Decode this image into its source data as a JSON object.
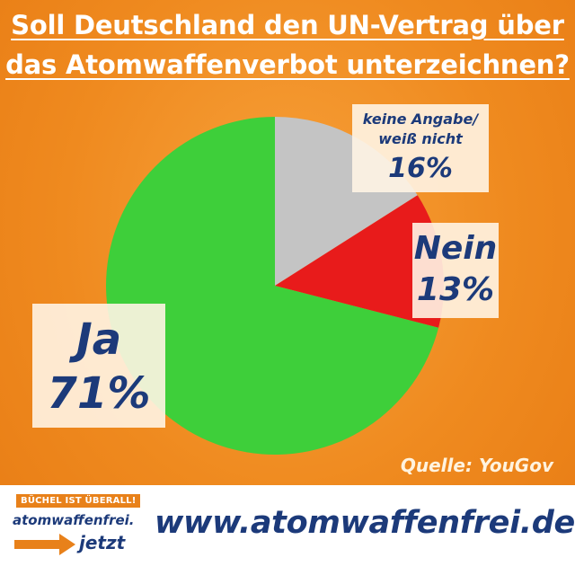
{
  "title": {
    "line1": "Soll Deutschland den UN-Vertrag über",
    "line2": "das Atomwaffenverbot unterzeichnen?"
  },
  "chart_data": {
    "type": "pie",
    "slices": [
      {
        "label": "keine Angabe/ weiß nicht",
        "value": 16,
        "color": "#c4c4c4"
      },
      {
        "label": "Nein",
        "value": 13,
        "color": "#e81b1b"
      },
      {
        "label": "Ja",
        "value": 71,
        "color": "#3ecf3a"
      }
    ],
    "value_labels": {
      "keine_angabe_line1": "keine Angabe/",
      "keine_angabe_line2": "weiß nicht",
      "keine_angabe_pct": "16%",
      "nein": "Nein",
      "nein_pct": "13%",
      "ja": "Ja",
      "ja_pct": "71%"
    },
    "start_angle": "top",
    "direction": "clockwise"
  },
  "source": "Quelle: YouGov",
  "footer": {
    "badge": "BÜCHEL IST ÜBERALL!",
    "logo_line1": "atomwaffenfrei.",
    "logo_line2": "jetzt",
    "url": "www.atomwaffenfrei.de",
    "arrow_color": "#e8811a"
  }
}
